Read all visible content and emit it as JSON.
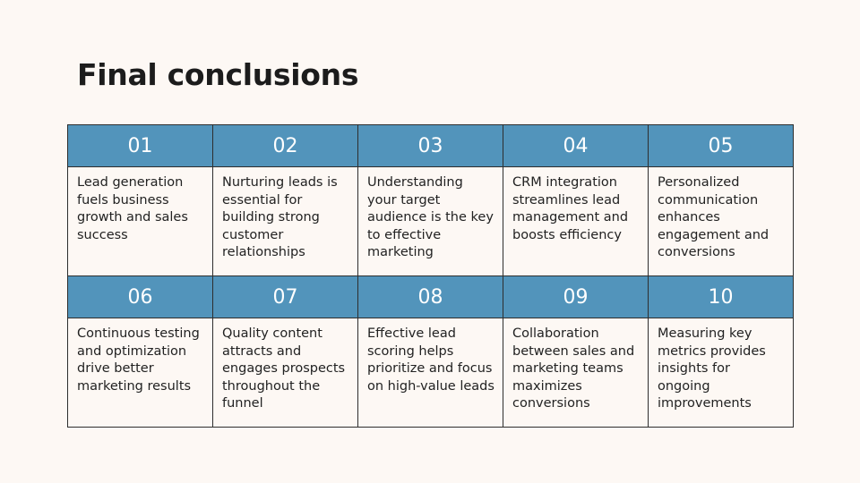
{
  "title": "Final conclusions",
  "table": {
    "rows": [
      [
        "01",
        "02",
        "03",
        "04",
        "05"
      ],
      [
        "Lead generation fuels business growth and sales success",
        "Nurturing leads is essential for building strong customer relationships",
        "Understanding your target audience is the key to effective marketing",
        "CRM integration streamlines lead management and boosts efficiency",
        "Personalized communication enhances engagement and conversions"
      ],
      [
        "06",
        "07",
        "08",
        "09",
        "10"
      ],
      [
        "Continuous testing and optimization drive better marketing results",
        "Quality content attracts and engages prospects throughout the funnel",
        "Effective lead scoring helps prioritize and focus on high-value leads",
        "Collaboration between sales and marketing teams maximizes conversions",
        "Measuring key metrics provides insights for ongoing improvements"
      ]
    ]
  }
}
